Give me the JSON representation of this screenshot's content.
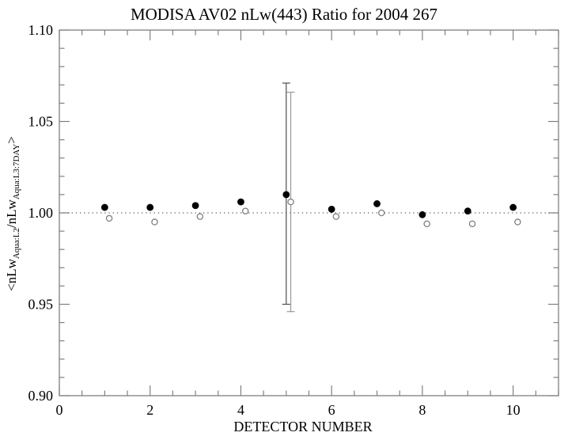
{
  "chart_data": {
    "type": "scatter",
    "title": "MODISA AV02 nLw(443) Ratio for 2004 267",
    "xlabel": "DETECTOR NUMBER",
    "ylabel_plain": "<nLw_Aqua:L2/nLw_Aqua:L3:7DAY>",
    "ylabel_parts": [
      {
        "text": "<nLw",
        "sub": false
      },
      {
        "text": "Aqua:L2",
        "sub": true
      },
      {
        "text": "/nLw",
        "sub": false
      },
      {
        "text": "Aqua:L3:7DAY",
        "sub": true
      },
      {
        "text": ">",
        "sub": false
      }
    ],
    "x_axis": {
      "lim": [
        0,
        11
      ],
      "minor_step": 0.5,
      "major_ticks": [
        {
          "value": 0,
          "label": "0"
        },
        {
          "value": 2,
          "label": "2"
        },
        {
          "value": 4,
          "label": "4"
        },
        {
          "value": 6,
          "label": "6"
        },
        {
          "value": 8,
          "label": "8"
        },
        {
          "value": 10,
          "label": "10"
        }
      ]
    },
    "y_axis": {
      "lim": [
        0.9,
        1.1
      ],
      "minor_step": 0.01,
      "major_ticks": [
        {
          "value": 0.9,
          "label": "0.90"
        },
        {
          "value": 0.95,
          "label": "0.95"
        },
        {
          "value": 1.0,
          "label": "1.00"
        },
        {
          "value": 1.05,
          "label": "1.05"
        },
        {
          "value": 1.1,
          "label": "1.10"
        }
      ]
    },
    "reference_line_y": 1.0,
    "x_values": [
      1,
      2,
      3,
      4,
      5,
      6,
      7,
      8,
      9,
      10
    ],
    "series": [
      {
        "name": "filled-circle-ratio",
        "marker": "filled-circle",
        "x_offset": 0,
        "values": [
          1.003,
          1.003,
          1.004,
          1.006,
          1.01,
          1.002,
          1.005,
          0.999,
          1.001,
          1.003
        ],
        "error_bars": [
          {
            "x": 5,
            "low": 0.95,
            "high": 1.071
          }
        ]
      },
      {
        "name": "open-circle-ratio",
        "marker": "open-circle",
        "x_offset": 0.1,
        "values": [
          0.997,
          0.995,
          0.998,
          1.001,
          1.006,
          0.998,
          1.0,
          0.994,
          0.994,
          0.995
        ],
        "error_bars": [
          {
            "x": 5,
            "low": 0.946,
            "high": 1.066
          }
        ]
      }
    ],
    "colors": {
      "background": "#ffffff",
      "axis": "#808080",
      "text": "#000000",
      "filled_marker": "#000000",
      "open_marker_stroke": "#808080",
      "reference_line": "#808080",
      "error_bar_filled": "#4d4d4d",
      "error_bar_open": "#999999"
    }
  }
}
